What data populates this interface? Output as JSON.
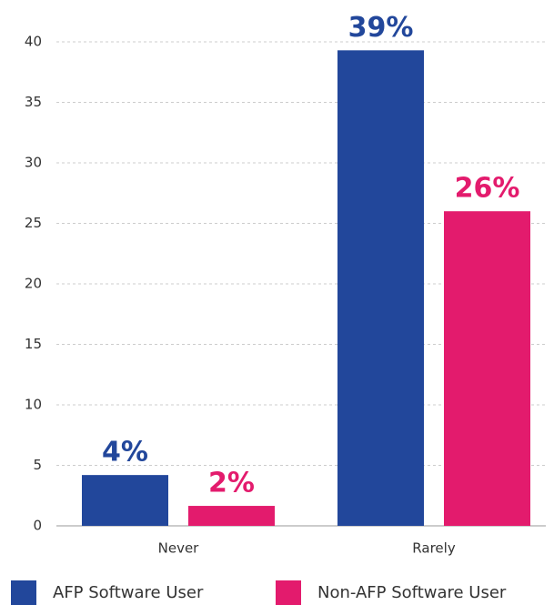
{
  "chart_data": {
    "type": "bar",
    "categories": [
      "Never",
      "Rarely"
    ],
    "series": [
      {
        "name": "AFP Software User",
        "color": "#22479b",
        "values": [
          4.2,
          39.3
        ],
        "value_labels": [
          "4%",
          "39%"
        ]
      },
      {
        "name": "Non-AFP Software User",
        "color": "#e31b6d",
        "values": [
          1.65,
          26
        ],
        "value_labels": [
          "2%",
          "26%"
        ]
      }
    ],
    "ylim": [
      0,
      40
    ],
    "yticks": [
      0,
      5,
      10,
      15,
      20,
      25,
      30,
      35,
      40
    ],
    "grid": true
  }
}
